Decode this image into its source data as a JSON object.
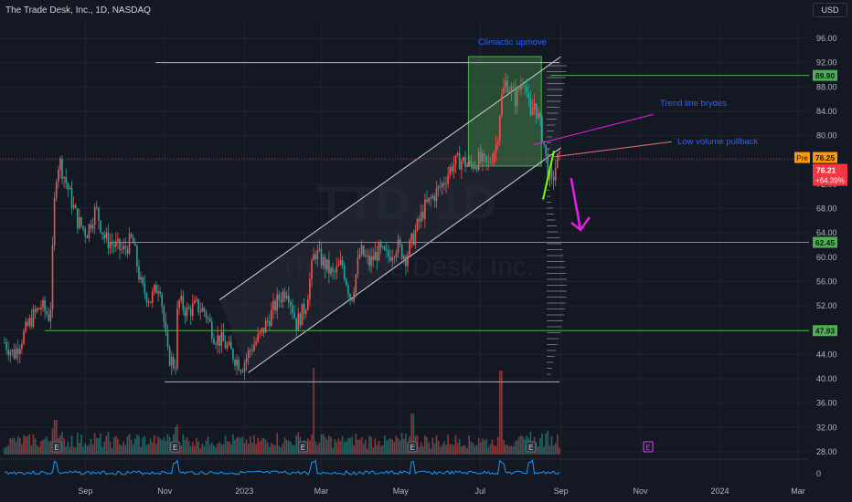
{
  "header": {
    "symbol_title": "The Trade Desk, Inc., 1D, NASDAQ",
    "currency": "USD"
  },
  "watermark": {
    "ticker": "TTD, 1D",
    "company": "The Trade Desk, Inc."
  },
  "colors": {
    "background": "#141823",
    "up": "#ef5350",
    "down": "#26a69a",
    "annotation_text": "#2962ff",
    "pink_arrow": "#e91ee6",
    "level_line": "#4caf50",
    "channel_line": "#d1d4dc",
    "box_fill": "#4caf50",
    "tag_green": "#4caf50",
    "pre_tag": "#ff9800",
    "last_tag": "#f23645"
  },
  "annotations": {
    "climactic": "Climactic upmove",
    "trendline": "Trend line brydes",
    "lowvol": "Low volume pullback"
  },
  "price_tags": {
    "pre_label": "Pre",
    "pre_value": "76.25",
    "last_value": "76.21",
    "last_change": "+64.39%",
    "levels": [
      "89.90",
      "62.45",
      "47.93"
    ]
  },
  "event_markers": [
    "E"
  ],
  "chart_data": {
    "type": "candlestick",
    "title": "The Trade Desk, Inc., 1D, NASDAQ",
    "ylim": [
      26,
      100
    ],
    "y_ticks": [
      "96.00",
      "92.00",
      "88.00",
      "84.00",
      "80.00",
      "76.00",
      "72.00",
      "68.00",
      "64.00",
      "60.00",
      "56.00",
      "52.00",
      "48.00",
      "44.00",
      "40.00",
      "36.00",
      "32.00",
      "28.00"
    ],
    "x_ticks": [
      "Sep",
      "Nov",
      "2023",
      "Mar",
      "May",
      "Jul",
      "Sep",
      "Nov",
      "2024",
      "Mar"
    ],
    "indicator_tick": "0",
    "price_path": [
      [
        "2022-07-01",
        46
      ],
      [
        "2022-07-08",
        44
      ],
      [
        "2022-07-15",
        47
      ],
      [
        "2022-07-22",
        50
      ],
      [
        "2022-07-29",
        52
      ],
      [
        "2022-08-05",
        50
      ],
      [
        "2022-08-09",
        73
      ],
      [
        "2022-08-12",
        76
      ],
      [
        "2022-08-19",
        71
      ],
      [
        "2022-08-26",
        66
      ],
      [
        "2022-09-02",
        64
      ],
      [
        "2022-09-09",
        68
      ],
      [
        "2022-09-16",
        63
      ],
      [
        "2022-09-23",
        62
      ],
      [
        "2022-09-30",
        61
      ],
      [
        "2022-10-07",
        63
      ],
      [
        "2022-10-14",
        55
      ],
      [
        "2022-10-21",
        53
      ],
      [
        "2022-10-28",
        56
      ],
      [
        "2022-11-03",
        44
      ],
      [
        "2022-11-09",
        42
      ],
      [
        "2022-11-11",
        53
      ],
      [
        "2022-11-18",
        51
      ],
      [
        "2022-11-25",
        52
      ],
      [
        "2022-12-02",
        51
      ],
      [
        "2022-12-09",
        47
      ],
      [
        "2022-12-16",
        46
      ],
      [
        "2022-12-23",
        44
      ],
      [
        "2022-12-30",
        42
      ],
      [
        "2023-01-06",
        45
      ],
      [
        "2023-01-13",
        47
      ],
      [
        "2023-01-20",
        50
      ],
      [
        "2023-01-27",
        53
      ],
      [
        "2023-02-03",
        55
      ],
      [
        "2023-02-10",
        49
      ],
      [
        "2023-02-17",
        52
      ],
      [
        "2023-02-24",
        61
      ],
      [
        "2023-03-03",
        59
      ],
      [
        "2023-03-10",
        57
      ],
      [
        "2023-03-17",
        59
      ],
      [
        "2023-03-24",
        53
      ],
      [
        "2023-03-31",
        61
      ],
      [
        "2023-04-07",
        59
      ],
      [
        "2023-04-14",
        61
      ],
      [
        "2023-04-21",
        60
      ],
      [
        "2023-04-28",
        62
      ],
      [
        "2023-05-05",
        60
      ],
      [
        "2023-05-12",
        64
      ],
      [
        "2023-05-19",
        68
      ],
      [
        "2023-05-26",
        70
      ],
      [
        "2023-06-02",
        72
      ],
      [
        "2023-06-09",
        75
      ],
      [
        "2023-06-16",
        76
      ],
      [
        "2023-06-23",
        75
      ],
      [
        "2023-06-30",
        76
      ],
      [
        "2023-07-07",
        75
      ],
      [
        "2023-07-14",
        79
      ],
      [
        "2023-07-17",
        86
      ],
      [
        "2023-07-21",
        89
      ],
      [
        "2023-07-28",
        86
      ],
      [
        "2023-08-04",
        90
      ],
      [
        "2023-08-09",
        82
      ],
      [
        "2023-08-11",
        86
      ],
      [
        "2023-08-18",
        80
      ],
      [
        "2023-08-22",
        74
      ],
      [
        "2023-08-25",
        72
      ],
      [
        "2023-08-29",
        76
      ],
      [
        "2023-09-01",
        76
      ]
    ],
    "levels": [
      89.9,
      62.45,
      47.93
    ],
    "channel": {
      "lower": [
        [
          "2023-01-04",
          41
        ],
        [
          "2023-09-01",
          78
        ]
      ],
      "upper": [
        [
          "2022-12-13",
          53
        ],
        [
          "2023-09-01",
          93
        ]
      ]
    },
    "horizontal_ray_top": [
      [
        "2022-10-25",
        92
      ],
      [
        "2023-08-31",
        92
      ]
    ],
    "horizontal_ray_bottom": [
      [
        "2022-11-01",
        39.5
      ],
      [
        "2023-08-31",
        39.5
      ]
    ],
    "climactic_box": {
      "from": "2023-06-22",
      "to": "2023-08-17",
      "low": 75,
      "high": 93
    },
    "projection_arrow": [
      [
        "2023-08-30",
        73
      ],
      [
        "2023-09-09",
        64.5
      ]
    ]
  }
}
